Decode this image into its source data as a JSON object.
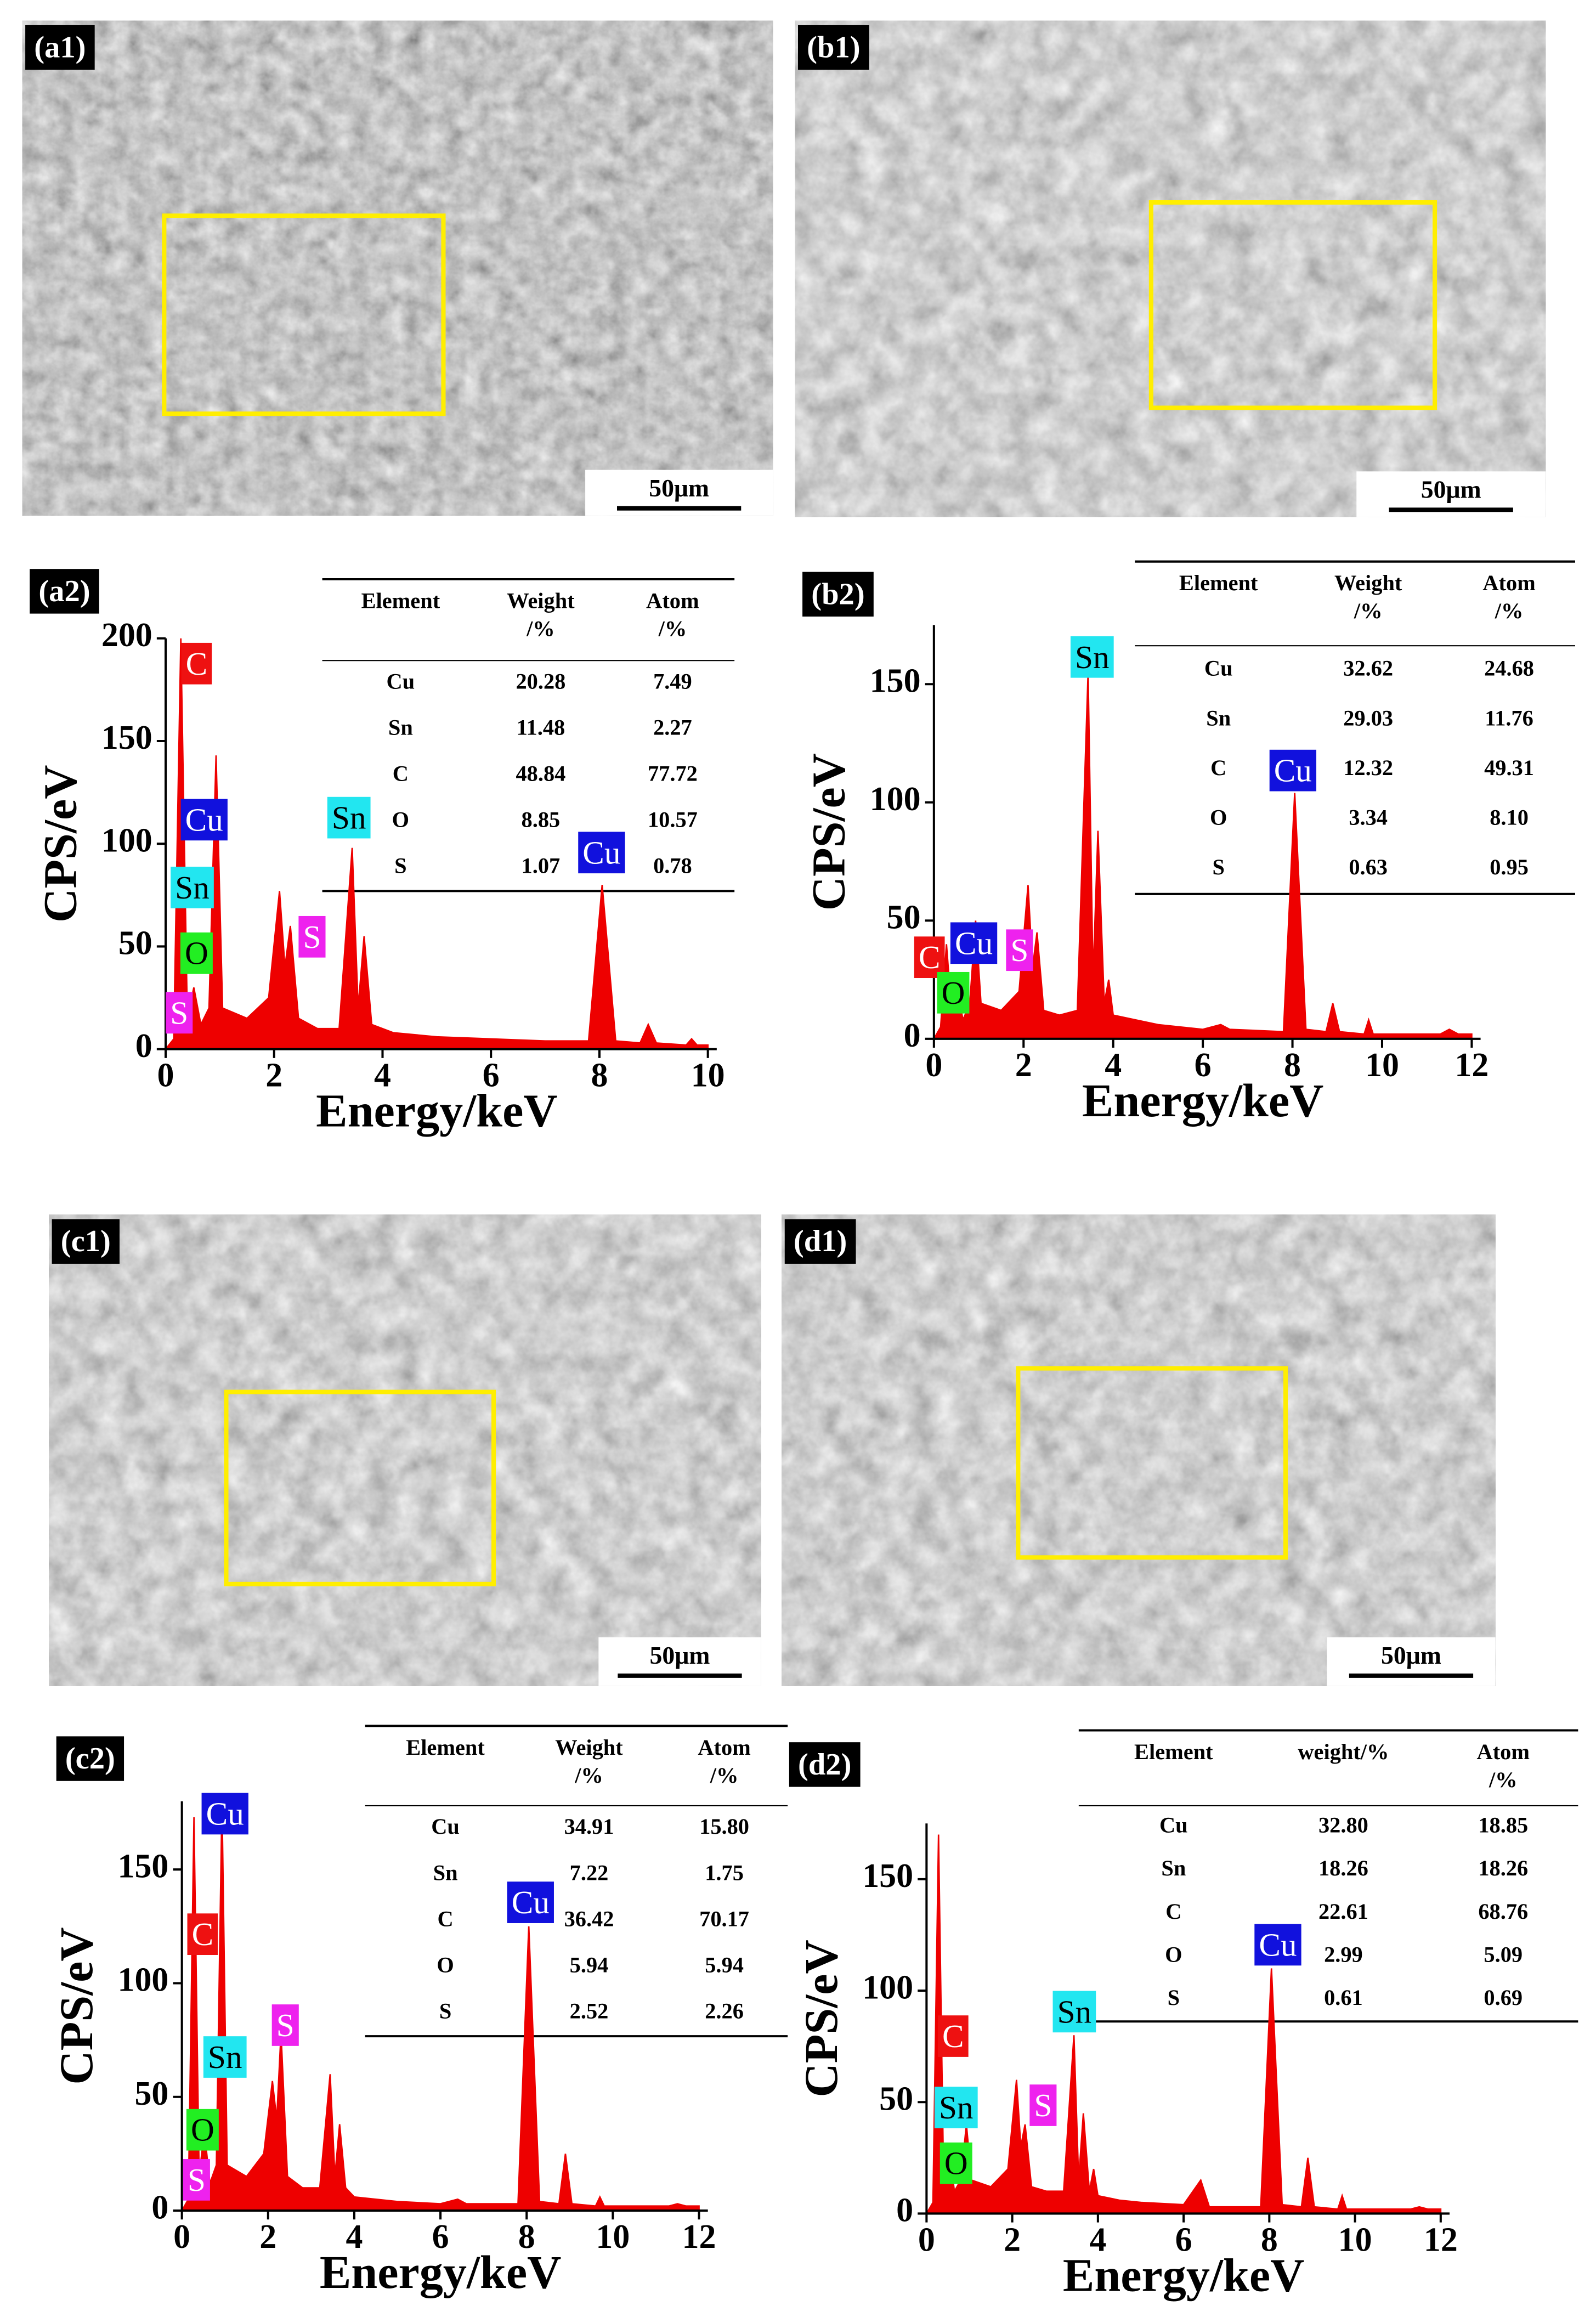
{
  "images": [
    {
      "label": "(a1)",
      "scale_bar": "50μm"
    },
    {
      "label": "(b1)",
      "scale_bar": "50μm"
    },
    {
      "label": "(c1)",
      "scale_bar": "50μm"
    },
    {
      "label": "(d1)",
      "scale_bar": "50μm"
    }
  ],
  "chart_data": [
    {
      "type": "area",
      "panel_label": "(a2)",
      "xlabel": "Energy/keV",
      "ylabel": "CPS/eV",
      "color": "#ee0000",
      "xlim": [
        0,
        10
      ],
      "xticks": [
        0,
        2,
        4,
        6,
        8,
        10
      ],
      "ylim": [
        0,
        200
      ],
      "yticks": [
        0,
        50,
        100,
        150,
        200
      ],
      "x": [
        0,
        0.15,
        0.28,
        0.4,
        0.52,
        0.65,
        0.8,
        0.93,
        1.05,
        1.5,
        1.9,
        2.1,
        2.2,
        2.3,
        2.45,
        2.8,
        3.2,
        3.44,
        3.55,
        3.66,
        3.8,
        4.2,
        5,
        6,
        7,
        7.8,
        8.05,
        8.3,
        8.75,
        8.9,
        9.05,
        9.6,
        9.7,
        9.8,
        10
      ],
      "values": [
        0,
        5,
        200,
        15,
        30,
        12,
        20,
        143,
        20,
        15,
        25,
        77,
        40,
        60,
        15,
        10,
        10,
        98,
        20,
        55,
        12,
        8,
        6,
        5,
        4,
        4,
        80,
        4,
        3,
        12,
        3,
        2,
        5,
        2,
        2
      ],
      "annotations": [
        {
          "text": "C",
          "x": 0.57,
          "y": 186,
          "color": "#ee1111"
        },
        {
          "text": "Cu",
          "x": 0.71,
          "y": 110,
          "color": "#1111dd"
        },
        {
          "text": "Sn",
          "x": 0.49,
          "y": 77,
          "color": "#22e6f0"
        },
        {
          "text": "O",
          "x": 0.57,
          "y": 45,
          "color": "#22ee22"
        },
        {
          "text": "S",
          "x": 0.25,
          "y": 16,
          "color": "#ee22ee"
        },
        {
          "text": "Sn",
          "x": 3.38,
          "y": 111,
          "color": "#22e6f0"
        },
        {
          "text": "S",
          "x": 2.7,
          "y": 53,
          "color": "#ee22ee"
        },
        {
          "text": "Cu",
          "x": 8.04,
          "y": 94,
          "color": "#1111dd"
        }
      ],
      "table": {
        "header": [
          [
            "Element"
          ],
          [
            "Weight",
            "/%"
          ],
          [
            "Atom",
            "/%"
          ]
        ],
        "rows": [
          [
            "Cu",
            "20.28",
            "7.49"
          ],
          [
            "Sn",
            "11.48",
            "2.27"
          ],
          [
            "C",
            "48.84",
            "77.72"
          ],
          [
            "O",
            "8.85",
            "10.57"
          ],
          [
            "S",
            "1.07",
            "0.78"
          ]
        ]
      }
    },
    {
      "type": "area",
      "panel_label": "(b2)",
      "xlabel": "Energy/keV",
      "ylabel": "CPS/eV",
      "color": "#ee0000",
      "xlim": [
        0,
        12
      ],
      "xticks": [
        0,
        2,
        4,
        6,
        8,
        10,
        12
      ],
      "ylim": [
        0,
        175
      ],
      "yticks": [
        0,
        50,
        100,
        150
      ],
      "x": [
        0,
        0.15,
        0.28,
        0.4,
        0.52,
        0.65,
        0.8,
        0.93,
        1.05,
        1.5,
        1.9,
        2.1,
        2.2,
        2.3,
        2.45,
        2.8,
        3.2,
        3.44,
        3.55,
        3.66,
        3.8,
        3.9,
        4.0,
        4.5,
        5,
        6,
        6.4,
        6.6,
        7.8,
        8.05,
        8.3,
        8.75,
        8.9,
        9.05,
        9.6,
        9.7,
        9.8,
        11.3,
        11.5,
        11.7,
        12
      ],
      "values": [
        0,
        5,
        40,
        10,
        20,
        8,
        15,
        50,
        15,
        12,
        20,
        65,
        30,
        45,
        12,
        10,
        12,
        155,
        25,
        88,
        15,
        25,
        10,
        8,
        6,
        4,
        6,
        4,
        3,
        104,
        4,
        3,
        15,
        3,
        2,
        8,
        2,
        2,
        4,
        2,
        2
      ],
      "annotations": [
        {
          "text": "Sn",
          "x": 3.53,
          "y": 160,
          "color": "#22e6f0"
        },
        {
          "text": "Cu",
          "x": 8.01,
          "y": 112,
          "color": "#1111dd"
        },
        {
          "text": "C",
          "x": -0.1,
          "y": 33,
          "color": "#ee1111"
        },
        {
          "text": "Cu",
          "x": 0.89,
          "y": 39,
          "color": "#1111dd"
        },
        {
          "text": "O",
          "x": 0.43,
          "y": 18,
          "color": "#22ee22"
        },
        {
          "text": "S",
          "x": 1.91,
          "y": 36,
          "color": "#ee22ee"
        }
      ],
      "table": {
        "header": [
          [
            "Element"
          ],
          [
            "Weight",
            "/%"
          ],
          [
            "Atom",
            "/%"
          ]
        ],
        "rows": [
          [
            "Cu",
            "32.62",
            "24.68"
          ],
          [
            "Sn",
            "29.03",
            "11.76"
          ],
          [
            "C",
            "12.32",
            "49.31"
          ],
          [
            "O",
            "3.34",
            "8.10"
          ],
          [
            "S",
            "0.63",
            "0.95"
          ]
        ]
      }
    },
    {
      "type": "area",
      "panel_label": "(c2)",
      "xlabel": "Energy/keV",
      "ylabel": "CPS/eV",
      "color": "#ee0000",
      "xlim": [
        0,
        12
      ],
      "xticks": [
        0,
        2,
        4,
        6,
        8,
        10,
        12
      ],
      "ylim": [
        0,
        180
      ],
      "yticks": [
        0,
        50,
        100,
        150
      ],
      "x": [
        0,
        0.15,
        0.28,
        0.4,
        0.52,
        0.65,
        0.8,
        0.93,
        1.05,
        1.5,
        1.9,
        2.1,
        2.2,
        2.3,
        2.45,
        2.8,
        3.2,
        3.44,
        3.55,
        3.66,
        3.8,
        3.9,
        4.0,
        4.5,
        5,
        6,
        6.4,
        6.6,
        7.8,
        8.05,
        8.3,
        8.75,
        8.9,
        9.05,
        9.6,
        9.7,
        9.8,
        11.3,
        11.5,
        11.7,
        12
      ],
      "values": [
        0,
        5,
        173,
        15,
        35,
        12,
        20,
        180,
        20,
        15,
        25,
        57,
        40,
        78,
        15,
        10,
        10,
        60,
        15,
        38,
        10,
        8,
        6,
        5,
        4,
        3,
        5,
        3,
        3,
        125,
        4,
        3,
        25,
        3,
        2,
        6,
        2,
        2,
        3,
        2,
        2
      ],
      "annotations": [
        {
          "text": "Cu",
          "x": 1.0,
          "y": 173,
          "color": "#1111dd"
        },
        {
          "text": "C",
          "x": 0.48,
          "y": 120,
          "color": "#ee1111"
        },
        {
          "text": "Sn",
          "x": 1.0,
          "y": 66,
          "color": "#22e6f0"
        },
        {
          "text": "O",
          "x": 0.48,
          "y": 34,
          "color": "#22ee22"
        },
        {
          "text": "S",
          "x": 0.34,
          "y": 12,
          "color": "#ee22ee"
        },
        {
          "text": "S",
          "x": 2.4,
          "y": 80,
          "color": "#ee22ee"
        },
        {
          "text": "Cu",
          "x": 8.09,
          "y": 134,
          "color": "#1111dd"
        }
      ],
      "table": {
        "header": [
          [
            "Element"
          ],
          [
            "Weight",
            "/%"
          ],
          [
            "Atom",
            "/%"
          ]
        ],
        "rows": [
          [
            "Cu",
            "34.91",
            "15.80"
          ],
          [
            "Sn",
            "7.22",
            "1.75"
          ],
          [
            "C",
            "36.42",
            "70.17"
          ],
          [
            "O",
            "5.94",
            "5.94"
          ],
          [
            "S",
            "2.52",
            "2.26"
          ]
        ]
      }
    },
    {
      "type": "area",
      "panel_label": "(d2)",
      "xlabel": "Energy/keV",
      "ylabel": "CPS/eV",
      "color": "#ee0000",
      "xlim": [
        0,
        12
      ],
      "xticks": [
        0,
        2,
        4,
        6,
        8,
        10,
        12
      ],
      "ylim": [
        0,
        175
      ],
      "yticks": [
        0,
        50,
        100,
        150
      ],
      "x": [
        0,
        0.15,
        0.28,
        0.4,
        0.52,
        0.65,
        0.8,
        0.93,
        1.05,
        1.5,
        1.9,
        2.1,
        2.2,
        2.3,
        2.45,
        2.8,
        3.2,
        3.44,
        3.55,
        3.66,
        3.8,
        3.9,
        4.0,
        4.5,
        5,
        6,
        6.4,
        6.6,
        7.8,
        8.05,
        8.3,
        8.75,
        8.9,
        9.05,
        9.6,
        9.7,
        9.8,
        11.3,
        11.5,
        11.7,
        12
      ],
      "values": [
        0,
        5,
        170,
        12,
        30,
        10,
        15,
        40,
        15,
        12,
        20,
        60,
        30,
        40,
        12,
        10,
        10,
        80,
        15,
        45,
        10,
        20,
        8,
        6,
        5,
        4,
        15,
        3,
        3,
        110,
        4,
        3,
        25,
        3,
        2,
        8,
        2,
        2,
        3,
        2,
        2
      ],
      "annotations": [
        {
          "text": "Sn",
          "x": 3.45,
          "y": 89,
          "color": "#22e6f0"
        },
        {
          "text": "Cu",
          "x": 8.2,
          "y": 119,
          "color": "#1111dd"
        },
        {
          "text": "C",
          "x": 0.62,
          "y": 78,
          "color": "#ee1111"
        },
        {
          "text": "Sn",
          "x": 0.69,
          "y": 46,
          "color": "#22e6f0"
        },
        {
          "text": "O",
          "x": 0.69,
          "y": 21,
          "color": "#22ee22"
        },
        {
          "text": "S",
          "x": 2.72,
          "y": 47,
          "color": "#ee22ee"
        }
      ],
      "table": {
        "header": [
          [
            "Element"
          ],
          [
            "weight/%"
          ],
          [
            "Atom",
            "/%"
          ]
        ],
        "rows": [
          [
            "Cu",
            "32.80",
            "18.85"
          ],
          [
            "Sn",
            "18.26",
            "18.26"
          ],
          [
            "C",
            "22.61",
            "68.76"
          ],
          [
            "O",
            "2.99",
            "5.09"
          ],
          [
            "S",
            "0.61",
            "0.69"
          ]
        ]
      }
    }
  ]
}
